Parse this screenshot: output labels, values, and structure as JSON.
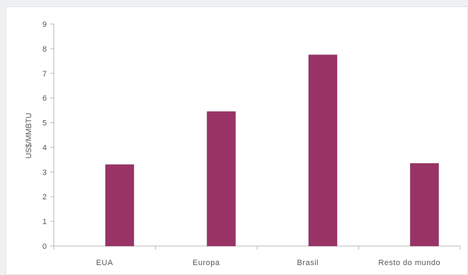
{
  "chart_data": {
    "type": "bar",
    "title": "",
    "xlabel": "",
    "ylabel": "US$/MMBTU",
    "ylim": [
      0,
      9
    ],
    "yticks": [
      0,
      1,
      2,
      3,
      4,
      5,
      6,
      7,
      8,
      9
    ],
    "categories": [
      "EUA",
      "Europa",
      "Brasil",
      "Resto do mundo"
    ],
    "values": [
      3.3,
      5.45,
      7.75,
      3.35
    ],
    "bar_color": "#993366",
    "grid": false,
    "legend": "none"
  }
}
